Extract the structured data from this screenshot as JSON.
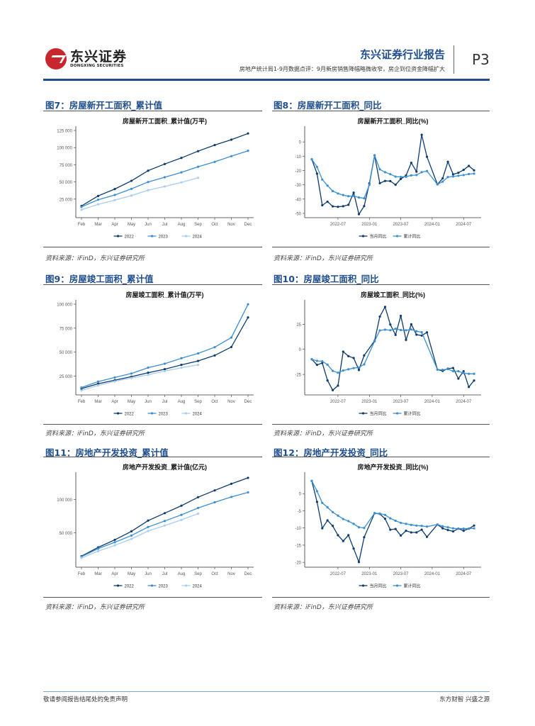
{
  "header": {
    "logo_cn": "东兴证券",
    "logo_en": "DONGXING SECURITIES",
    "report_type": "东兴证券行业报告",
    "subtitle": "房地产统计局1-9月数据点评：9月新房销售降幅略微收窄，房企到位资金降幅扩大",
    "page": "P3"
  },
  "colors": {
    "c2022": "#0d3b6e",
    "c2023": "#3b8fd0",
    "c2024": "#a9cdf0",
    "monthly": "#0d3b6e",
    "cumulative": "#3b8fd0",
    "title": "#1f4e8c"
  },
  "figures": [
    {
      "label": "图7：房屋新开工面积_累计值",
      "source": "资料来源：iFinD，东兴证券研究所"
    },
    {
      "label": "图8：房屋新开工面积_同比",
      "source": "资料来源：iFinD，东兴证券研究所"
    },
    {
      "label": "图9：房屋竣工面积_累计值",
      "source": "资料来源：iFinD，东兴证券研究所"
    },
    {
      "label": "图10：房屋竣工面积_同比",
      "source": "资料来源：iFinD，东兴证券研究所"
    },
    {
      "label": "图11：房地产开发投资_累计值",
      "source": "资料来源：iFinD，东兴证券研究所"
    },
    {
      "label": "图12：房地产开发投资_同比",
      "source": "资料来源：iFinD，东兴证券研究所"
    }
  ],
  "footer": {
    "left": "敬请参阅报告结尾处的免责声明",
    "right": "东方财智 兴盛之源"
  },
  "chart_data": [
    {
      "type": "line",
      "title": "房屋新开工面积_累计值(万平)",
      "xlabel": "",
      "ylabel": "",
      "categories": [
        "Feb",
        "Mar",
        "Apr",
        "May",
        "Jun",
        "Jul",
        "Aug",
        "Sep",
        "Oct",
        "Nov",
        "Dec"
      ],
      "ylim": [
        0,
        125000
      ],
      "yticks": [
        25000,
        50000,
        75000,
        100000,
        125000
      ],
      "yticklabels": [
        "25 000",
        "50 000",
        "75 000",
        "100 000",
        "125 000"
      ],
      "legend": "bottom",
      "series": [
        {
          "name": "2022",
          "color": "#0d3b6e",
          "values": [
            15000,
            29600,
            39700,
            51600,
            66400,
            76100,
            85000,
            94800,
            103700,
            111600,
            120600
          ]
        },
        {
          "name": "2023",
          "color": "#3b8fd0",
          "values": [
            13600,
            24100,
            31000,
            39900,
            49900,
            56800,
            63900,
            72100,
            79200,
            87500,
            95400
          ]
        },
        {
          "name": "2024",
          "color": "#a9cdf0",
          "values": [
            9400,
            17400,
            23500,
            30100,
            38000,
            43400,
            49300,
            56000,
            null,
            null,
            null
          ]
        }
      ]
    },
    {
      "type": "line",
      "title": "房屋新开工面积_同比(%)",
      "xlabel": "",
      "ylabel": "",
      "xticklabels": [
        "2022-07",
        "2023-01",
        "2023-07",
        "2024-01",
        "2024-07"
      ],
      "x_start": "2022-02",
      "x_end": "2024-09",
      "ylim": [
        -52,
        8
      ],
      "yticks": [
        0,
        -10,
        -20,
        -30,
        -40,
        -50
      ],
      "legend": "bottom",
      "series": [
        {
          "name": "当月同比",
          "color": "#0d3b6e",
          "values": [
            -12.2,
            -22.2,
            -44.3,
            -41.8,
            -45.1,
            -45.4,
            -45.0,
            -44.0,
            -35.5,
            -50.6,
            -44.9,
            -29.0,
            -9.4,
            -28.9,
            -27.3,
            -27.4,
            -30.0,
            -25.9,
            -23.5,
            -14.6,
            -20.8,
            5.0,
            -10.4,
            null,
            -29.7,
            -25.5,
            -13.9,
            -22.7,
            -21.6,
            -19.6,
            -16.8,
            -19.9
          ]
        },
        {
          "name": "累计同比",
          "color": "#3b8fd0",
          "values": [
            -12.2,
            -17.5,
            -26.3,
            -30.6,
            -34.4,
            -36.1,
            -37.2,
            -38.0,
            -37.8,
            -38.9,
            -39.4,
            -30.0,
            -9.4,
            -19.2,
            -21.2,
            -22.6,
            -24.3,
            -24.5,
            -24.4,
            -23.4,
            -23.2,
            -21.2,
            -20.4,
            null,
            -29.7,
            -27.8,
            -24.6,
            -24.2,
            -23.7,
            -23.2,
            -22.5,
            -22.2
          ]
        }
      ]
    },
    {
      "type": "line",
      "title": "房屋竣工面积_累计值(万平)",
      "xlabel": "",
      "ylabel": "",
      "categories": [
        "Feb",
        "Mar",
        "Apr",
        "May",
        "Jun",
        "Jul",
        "Aug",
        "Sep",
        "Oct",
        "Nov",
        "Dec"
      ],
      "ylim": [
        7000,
        100000
      ],
      "yticks": [
        25000,
        50000,
        75000,
        100000
      ],
      "yticklabels": [
        "25 000",
        "50 000",
        "75 000",
        "100 000"
      ],
      "legend": "bottom",
      "series": [
        {
          "name": "2022",
          "color": "#0d3b6e",
          "values": [
            12100,
            17200,
            20800,
            24500,
            28600,
            32300,
            36800,
            40900,
            46600,
            55400,
            86200
          ]
        },
        {
          "name": "2023",
          "color": "#3b8fd0",
          "values": [
            13200,
            19400,
            23700,
            27800,
            33900,
            38000,
            43700,
            48700,
            55200,
            65200,
            99800
          ]
        },
        {
          "name": "2024",
          "color": "#a9cdf0",
          "values": [
            10100,
            15500,
            19600,
            23200,
            26500,
            30300,
            33800,
            36800,
            null,
            null,
            null
          ]
        }
      ]
    },
    {
      "type": "line",
      "title": "房屋竣工面积_同比(%)",
      "xlabel": "",
      "ylabel": "",
      "xticklabels": [
        "2022-07",
        "2023-01",
        "2023-07",
        "2024-01",
        "2024-07"
      ],
      "x_start": "2022-02",
      "x_end": "2024-09",
      "ylim": [
        -44,
        45
      ],
      "yticks": [
        25,
        0,
        -25
      ],
      "legend": "bottom",
      "series": [
        {
          "name": "当月同比",
          "color": "#0d3b6e",
          "values": [
            -9.9,
            -15.5,
            -13.6,
            -31.0,
            -40.7,
            -36.2,
            -2.3,
            -6.8,
            -8.7,
            -20.6,
            -6.1,
            null,
            8.4,
            32.6,
            42.3,
            24.7,
            14.4,
            33.4,
            9.4,
            25.0,
            14.6,
            13.7,
            16.9,
            null,
            -20.2,
            -21.5,
            -19.3,
            -18.6,
            -29.2,
            -21.8,
            -37.5,
            -31.1
          ]
        },
        {
          "name": "累计同比",
          "color": "#3b8fd0",
          "values": [
            -9.9,
            -11.5,
            -11.9,
            -15.3,
            -21.5,
            -23.3,
            -21.1,
            -19.9,
            -18.7,
            -18.1,
            -15.0,
            null,
            8.0,
            18.8,
            19.6,
            19.0,
            20.5,
            19.2,
            19.0,
            19.8,
            18.0,
            17.0,
            null,
            null,
            -20.2,
            -20.4,
            -19.7,
            -21.8,
            -21.8,
            -23.6,
            -24.4,
            -24.4
          ]
        }
      ]
    },
    {
      "type": "line",
      "title": "房地产开发投资_累计值(亿元)",
      "xlabel": "",
      "ylabel": "",
      "categories": [
        "Feb",
        "Mar",
        "Apr",
        "May",
        "Jun",
        "Jul",
        "Aug",
        "Sep",
        "Oct",
        "Nov",
        "Dec"
      ],
      "ylim": [
        0,
        135000
      ],
      "yticks": [
        50000,
        100000
      ],
      "yticklabels": [
        "50 000",
        "100 000"
      ],
      "legend": "bottom",
      "series": [
        {
          "name": "2022",
          "color": "#0d3b6e",
          "values": [
            14500,
            27800,
            39200,
            52100,
            68300,
            79500,
            90800,
            103600,
            113900,
            123900,
            132900
          ]
        },
        {
          "name": "2023",
          "color": "#3b8fd0",
          "values": [
            13700,
            25900,
            35500,
            45700,
            58600,
            67700,
            76900,
            87300,
            95900,
            104000,
            110900
          ]
        },
        {
          "name": "2024",
          "color": "#a9cdf0",
          "values": [
            11800,
            22100,
            30900,
            40600,
            52500,
            60900,
            69300,
            78700,
            null,
            null,
            null
          ]
        }
      ]
    },
    {
      "type": "line",
      "title": "房地产开发投资_同比(%)",
      "xlabel": "",
      "ylabel": "",
      "xticklabels": [
        "2022-07",
        "2023-01",
        "2023-07",
        "2024-01",
        "2024-07"
      ],
      "x_start": "2022-02",
      "x_end": "2024-09",
      "ylim": [
        -21,
        5
      ],
      "yticks": [
        0,
        -5,
        -10,
        -15,
        -20
      ],
      "legend": "bottom",
      "series": [
        {
          "name": "当月同比",
          "color": "#0d3b6e",
          "values": [
            3.7,
            -2.4,
            -10.1,
            -7.8,
            -9.4,
            -12.1,
            -13.8,
            -12.1,
            -16.0,
            -19.9,
            -12.7,
            null,
            -5.7,
            -5.9,
            -7.3,
            -10.5,
            -10.3,
            -12.2,
            -10.8,
            -11.3,
            -11.3,
            -10.5,
            -12.6,
            null,
            -9.0,
            -10.1,
            -10.6,
            -11.0,
            -10.2,
            -10.8,
            -10.2,
            -9.3
          ]
        },
        {
          "name": "累计同比",
          "color": "#3b8fd0",
          "values": [
            3.7,
            0.7,
            -2.7,
            -4.0,
            -5.4,
            -6.4,
            -7.4,
            -8.0,
            -8.8,
            -9.8,
            -10.0,
            null,
            -5.7,
            -5.8,
            -6.2,
            -7.2,
            -7.9,
            -8.5,
            -8.8,
            -9.1,
            -9.3,
            -9.4,
            -9.6,
            null,
            -9.0,
            -9.5,
            -9.8,
            -10.1,
            -10.2,
            -10.2,
            -10.2,
            -10.1
          ]
        }
      ]
    }
  ]
}
